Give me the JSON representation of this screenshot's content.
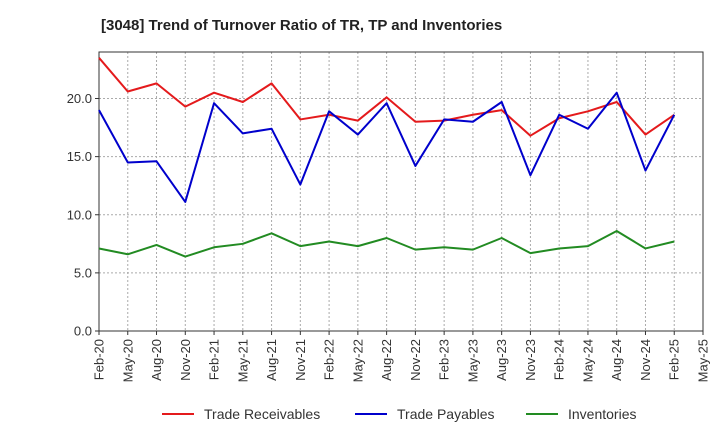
{
  "chart_data": {
    "type": "line",
    "title": "[3048]  Trend of Turnover Ratio of TR, TP and Inventories",
    "xlabel": "",
    "ylabel": "",
    "ylim": [
      0,
      24
    ],
    "yticks": [
      "0.0",
      "5.0",
      "10.0",
      "15.0",
      "20.0"
    ],
    "x_tick_labels": [
      "Feb-20",
      "May-20",
      "Aug-20",
      "Nov-20",
      "Feb-21",
      "May-21",
      "Aug-21",
      "Nov-21",
      "Feb-22",
      "May-22",
      "Aug-22",
      "Nov-22",
      "Feb-23",
      "May-23",
      "Aug-23",
      "Nov-23",
      "Feb-24",
      "May-24",
      "Aug-24",
      "Nov-24",
      "Feb-25",
      "May-25"
    ],
    "grid": true,
    "legend_position": "bottom",
    "x": [
      "Feb-20",
      "May-20",
      "Aug-20",
      "Nov-20",
      "Feb-21",
      "May-21",
      "Aug-21",
      "Nov-21",
      "Feb-22",
      "May-22",
      "Aug-22",
      "Nov-22",
      "Feb-23",
      "May-23",
      "Aug-23",
      "Nov-23",
      "Feb-24",
      "May-24",
      "Aug-24",
      "Nov-24",
      "Feb-25"
    ],
    "series": [
      {
        "name": "Trade Receivables",
        "color": "#e41a1c",
        "values": [
          23.5,
          20.6,
          21.3,
          19.3,
          20.5,
          19.7,
          21.3,
          18.2,
          18.6,
          18.1,
          20.1,
          18.0,
          18.1,
          18.6,
          19.0,
          16.8,
          18.3,
          18.9,
          19.7,
          16.9,
          18.6
        ]
      },
      {
        "name": "Trade Payables",
        "color": "#0000cc",
        "values": [
          19.0,
          14.5,
          14.6,
          11.1,
          19.6,
          17.0,
          17.4,
          12.6,
          18.9,
          16.9,
          19.6,
          14.2,
          18.2,
          18.0,
          19.7,
          13.4,
          18.6,
          17.4,
          20.5,
          13.8,
          18.6
        ]
      },
      {
        "name": "Inventories",
        "color": "#228b22",
        "values": [
          7.1,
          6.6,
          7.4,
          6.4,
          7.2,
          7.5,
          8.4,
          7.3,
          7.7,
          7.3,
          8.0,
          7.0,
          7.2,
          7.0,
          8.0,
          6.7,
          7.1,
          7.3,
          8.6,
          7.1,
          7.7
        ]
      }
    ]
  }
}
